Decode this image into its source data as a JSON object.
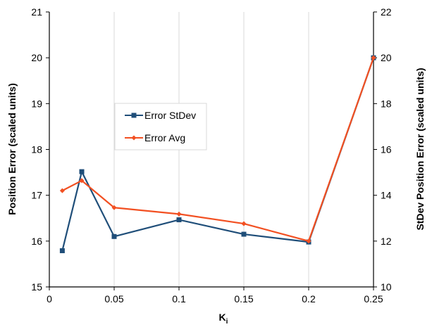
{
  "chart_data": {
    "type": "line",
    "title": "",
    "xlabel": "K",
    "xlabel_subscript": "i",
    "ylabel": "Position Error (scaled units)",
    "y2label": "StDev Position Error (scaled units)",
    "xlim": [
      0,
      0.25
    ],
    "ylim": [
      15,
      21
    ],
    "y2lim": [
      10,
      22
    ],
    "xticks": [
      "0",
      "0.05",
      "0.1",
      "0.15",
      "0.2",
      "0.25"
    ],
    "yticks": [
      "15",
      "16",
      "17",
      "18",
      "19",
      "20",
      "21"
    ],
    "y2ticks": [
      "10",
      "12",
      "14",
      "16",
      "18",
      "20",
      "22"
    ],
    "grid": "vertical",
    "legend_position": "center-left",
    "series": [
      {
        "name": "Error StDev",
        "axis": "right",
        "color": "#1F4E79",
        "marker": "square",
        "x": [
          0.01,
          0.025,
          0.05,
          0.1,
          0.15,
          0.2,
          0.25
        ],
        "y": [
          11.58,
          15.03,
          12.2,
          12.93,
          12.3,
          11.96,
          20.0
        ]
      },
      {
        "name": "Error Avg",
        "axis": "left",
        "color": "#F25022",
        "marker": "diamond",
        "x": [
          0.01,
          0.025,
          0.05,
          0.1,
          0.15,
          0.2,
          0.25
        ],
        "y": [
          17.1,
          17.32,
          16.73,
          16.59,
          16.38,
          16.0,
          20.0
        ]
      }
    ]
  }
}
